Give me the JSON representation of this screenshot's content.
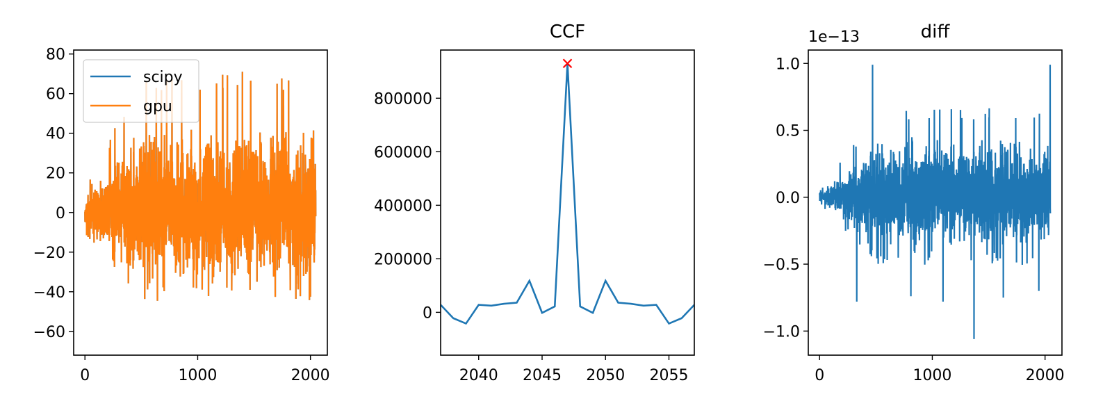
{
  "colors": {
    "blue": "#1f77b4",
    "orange": "#ff7f0e",
    "marker": "#ff0000"
  },
  "chart_data": [
    {
      "type": "line",
      "title": "",
      "legend_position": "upper-left",
      "xlim": [
        -100,
        2150
      ],
      "ylim": [
        -72,
        82
      ],
      "xticks": [
        0,
        1000,
        2000
      ],
      "yticks": [
        -60,
        -40,
        -20,
        0,
        20,
        40,
        60,
        80
      ],
      "xtick_labels": [
        "0",
        "1000",
        "2000"
      ],
      "ytick_labels": [
        "−60",
        "−40",
        "−20",
        "0",
        "20",
        "40",
        "60",
        "80"
      ],
      "series": [
        {
          "name": "scipy",
          "color": "#1f77b4",
          "n": 2048,
          "mean": 0,
          "envelope_start": [
            -12,
            15
          ],
          "envelope_end": [
            -47,
            75
          ]
        },
        {
          "name": "gpu",
          "color": "#ff7f0e",
          "n": 2048,
          "mean": 0,
          "envelope_start": [
            -12,
            15
          ],
          "envelope_end": [
            -47,
            75
          ]
        }
      ]
    },
    {
      "type": "line",
      "title": "CCF",
      "xlim": [
        2037,
        2057
      ],
      "ylim": [
        -160000,
        980000
      ],
      "xticks": [
        2040,
        2045,
        2050,
        2055
      ],
      "yticks": [
        0,
        200000,
        400000,
        600000,
        800000
      ],
      "xtick_labels": [
        "2040",
        "2045",
        "2050",
        "2055"
      ],
      "ytick_labels": [
        "0",
        "200000",
        "400000",
        "600000",
        "800000"
      ],
      "x": [
        2037,
        2038,
        2039,
        2040,
        2041,
        2042,
        2043,
        2044,
        2045,
        2046,
        2047,
        2048,
        2049,
        2050,
        2051,
        2052,
        2053,
        2054,
        2055,
        2056,
        2057
      ],
      "y": [
        28000,
        -22000,
        -42000,
        28000,
        25000,
        32000,
        36000,
        118000,
        -2000,
        22000,
        930000,
        22000,
        -2000,
        118000,
        36000,
        32000,
        25000,
        28000,
        -42000,
        -22000,
        28000
      ],
      "peak": {
        "x": 2047,
        "y": 930000,
        "marker": "x"
      }
    },
    {
      "type": "line",
      "title": "diff",
      "offset_label": "1e−13",
      "xlim": [
        -100,
        2150
      ],
      "ylim": [
        -1.18,
        1.1
      ],
      "xticks": [
        0,
        1000,
        2000
      ],
      "yticks": [
        -1.0,
        -0.5,
        0.0,
        0.5,
        1.0
      ],
      "xtick_labels": [
        "0",
        "1000",
        "2000"
      ],
      "ytick_labels": [
        "−1.0",
        "−0.5",
        "0.0",
        "0.5",
        "1.0"
      ],
      "series": [
        {
          "color": "#1f77b4",
          "n": 2048,
          "mean": 0,
          "envelope_start": [
            -0.05,
            0.05
          ],
          "envelope_end": [
            -0.55,
            0.7
          ],
          "spikes": [
            [
              470,
              0.99
            ],
            [
              2045,
              0.99
            ],
            [
              1370,
              -1.06
            ],
            [
              330,
              -0.78
            ],
            [
              1095,
              -0.78
            ],
            [
              810,
              -0.74
            ],
            [
              1630,
              -0.75
            ],
            [
              1945,
              -0.7
            ]
          ]
        }
      ]
    }
  ]
}
